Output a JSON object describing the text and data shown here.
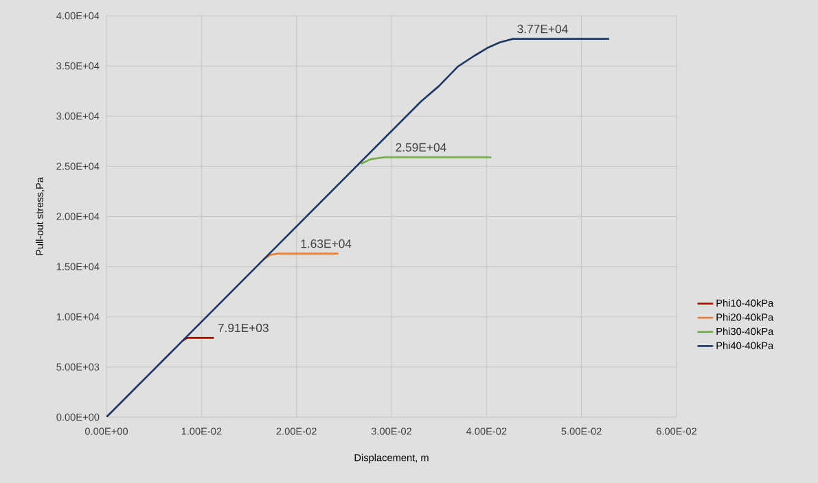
{
  "chart_data": {
    "type": "line",
    "xlabel": "Displacement, m",
    "ylabel": "Pull-out stress,Pa",
    "series": [
      {
        "name": "Phi10-40kPa",
        "color": "#c00000",
        "x": [
          0.008,
          0.0085,
          0.0113
        ],
        "values": [
          7600,
          7910,
          7910
        ]
      },
      {
        "name": "Phi20-40kPa",
        "color": "#ed7d31",
        "x": [
          0.0165,
          0.0172,
          0.018,
          0.0244
        ],
        "values": [
          15700,
          16150,
          16300,
          16300
        ]
      },
      {
        "name": "Phi30-40kPa",
        "color": "#70ad47",
        "x": [
          0.0268,
          0.0278,
          0.0292,
          0.0405
        ],
        "values": [
          25250,
          25700,
          25900,
          25900
        ]
      },
      {
        "name": "Phi40-40kPa",
        "color": "#1f3864",
        "x": [
          0,
          0.0331,
          0.035,
          0.037,
          0.0387,
          0.0401,
          0.0414,
          0.0428,
          0.0529
        ],
        "values": [
          0,
          31450,
          33000,
          34950,
          36000,
          36800,
          37350,
          37700,
          37700
        ]
      }
    ],
    "xlim": [
      0,
      0.06
    ],
    "xticks": [
      {
        "value": 0,
        "label": "0.00E+00"
      },
      {
        "value": 0.01,
        "label": "1.00E-02"
      },
      {
        "value": 0.02,
        "label": "2.00E-02"
      },
      {
        "value": 0.03,
        "label": "3.00E-02"
      },
      {
        "value": 0.04,
        "label": "4.00E-02"
      },
      {
        "value": 0.05,
        "label": "5.00E-02"
      },
      {
        "value": 0.06,
        "label": "6.00E-02"
      }
    ],
    "ylim": [
      0,
      40000
    ],
    "yticks": [
      {
        "value": 0,
        "label": "0.00E+00"
      },
      {
        "value": 5000,
        "label": "5.00E+03"
      },
      {
        "value": 10000,
        "label": "1.00E+04"
      },
      {
        "value": 15000,
        "label": "1.50E+04"
      },
      {
        "value": 20000,
        "label": "2.00E+04"
      },
      {
        "value": 25000,
        "label": "2.50E+04"
      },
      {
        "value": 30000,
        "label": "3.00E+04"
      },
      {
        "value": 35000,
        "label": "3.50E+04"
      },
      {
        "value": 40000,
        "label": "4.00E+04"
      }
    ],
    "annotations": [
      {
        "text": "7.91E+03",
        "x": 0.0113,
        "y": 7910
      },
      {
        "text": "1.63E+04",
        "x": 0.02,
        "y": 16300
      },
      {
        "text": "2.59E+04",
        "x": 0.03,
        "y": 25900
      },
      {
        "text": "3.77E+04",
        "x": 0.0428,
        "y": 37700
      }
    ],
    "grid": true,
    "legend": "right",
    "marker": "none",
    "line_style": "solid"
  }
}
